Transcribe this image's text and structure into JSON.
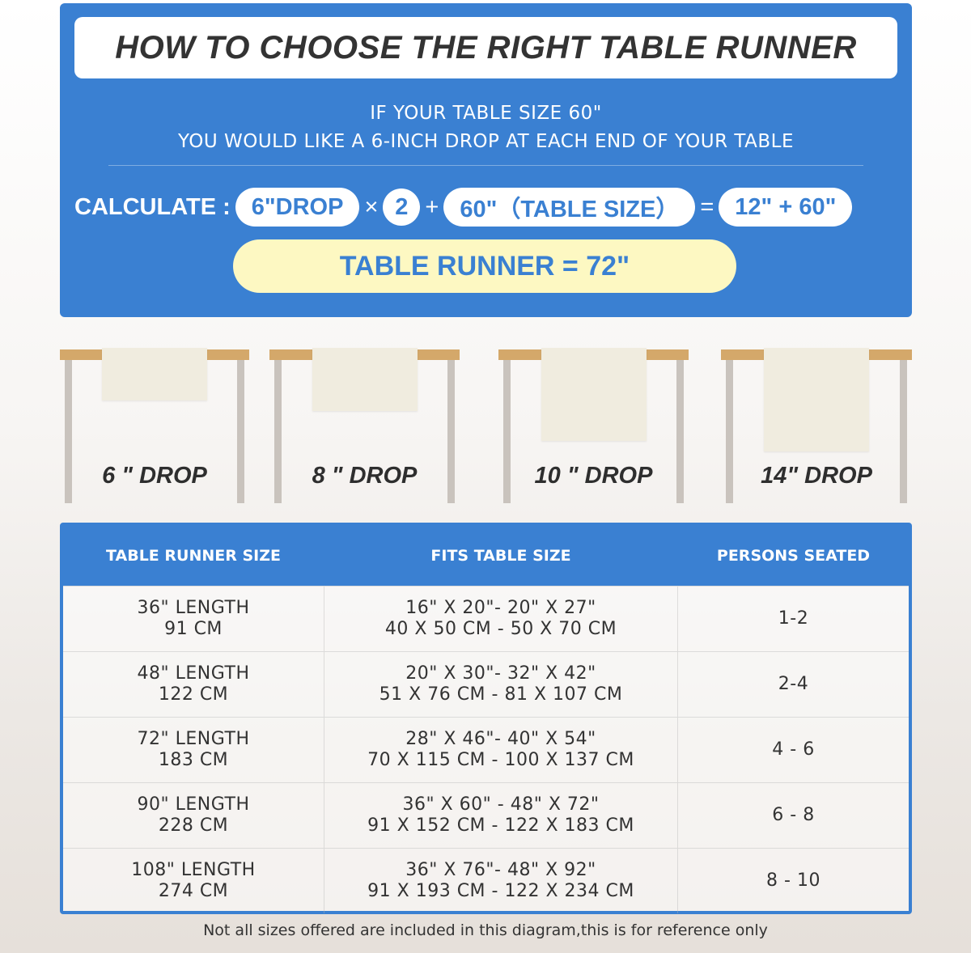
{
  "header": {
    "title": "HOW TO CHOOSE THE RIGHT TABLE RUNNER",
    "line1": "IF YOUR TABLE SIZE 60\"",
    "line2": "YOU WOULD LIKE A 6-INCH DROP AT EACH END OF YOUR TABLE"
  },
  "calc": {
    "label": "CALCULATE :",
    "drop": "6\"DROP",
    "times": "×",
    "factor": "2",
    "plus": "+",
    "table": "60\"（TABLE SIZE）",
    "equals": "=",
    "sum": "12\" + 60\"",
    "result": "TABLE RUNNER = 72\""
  },
  "drops": [
    {
      "label": "6 \" DROP",
      "inches": 6
    },
    {
      "label": "8 \" DROP",
      "inches": 8
    },
    {
      "label": "10 \" DROP",
      "inches": 10
    },
    {
      "label": "14\" DROP",
      "inches": 14
    }
  ],
  "table": {
    "headers": [
      "TABLE RUNNER SIZE",
      "FITS TABLE SIZE",
      "PERSONS SEATED"
    ],
    "rows": [
      {
        "size": "36\" LENGTH",
        "size_cm": "91 CM",
        "fit": "16\" X 20\"- 20\" X 27\"",
        "fit_cm": "40 X 50 CM - 50 X 70 CM",
        "persons": "1-2"
      },
      {
        "size": "48\" LENGTH",
        "size_cm": "122 CM",
        "fit": "20\" X 30\"- 32\" X 42\"",
        "fit_cm": "51 X 76 CM - 81 X 107 CM",
        "persons": "2-4"
      },
      {
        "size": "72\" LENGTH",
        "size_cm": "183 CM",
        "fit": "28\" X 46\"- 40\" X 54\"",
        "fit_cm": "70 X 115 CM - 100 X 137 CM",
        "persons": "4 - 6"
      },
      {
        "size": "90\" LENGTH",
        "size_cm": "228 CM",
        "fit": "36\" X 60\" - 48\" X 72\"",
        "fit_cm": "91 X 152 CM - 122 X 183 CM",
        "persons": "6 - 8"
      },
      {
        "size": "108\" LENGTH",
        "size_cm": "274 CM",
        "fit": "36\" X 76\"- 48\" X 92\"",
        "fit_cm": "91 X 193 CM - 122 X 234 CM",
        "persons": "8 - 10"
      }
    ]
  },
  "note": "Not all sizes offered are included in this diagram,this is for reference only",
  "colors": {
    "accent": "#3a80d2",
    "result_bg": "#fdf8c2",
    "table_top": "#d4a86a"
  }
}
